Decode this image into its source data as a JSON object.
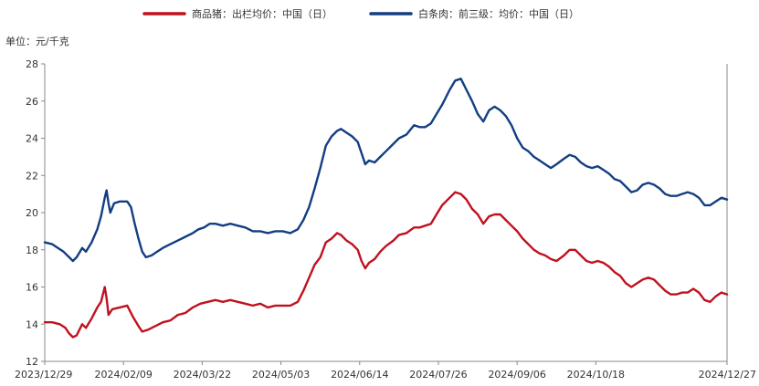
{
  "chart_data": {
    "type": "line",
    "unit_label": "单位：元/千克",
    "legend_placement": "top-center",
    "grid": false,
    "ylim": [
      12,
      28
    ],
    "y_ticks": [
      "12",
      "14",
      "16",
      "18",
      "20",
      "22",
      "24",
      "26",
      "28"
    ],
    "x_range": [
      "2023-12-29",
      "2024-12-27"
    ],
    "x_ticks": [
      "2023/12/29",
      "2024/02/09",
      "2024/03/22",
      "2024/05/03",
      "2024/06/14",
      "2024/07/26",
      "2024/09/06",
      "2024/10/18",
      "2024/12/27"
    ],
    "series": [
      {
        "name": "商品猪：出栏均价：中国（日）",
        "color": "#c0111f",
        "points": [
          [
            "2023-12-29",
            14.1
          ],
          [
            "2024-01-02",
            14.1
          ],
          [
            "2024-01-06",
            14.0
          ],
          [
            "2024-01-09",
            13.8
          ],
          [
            "2024-01-11",
            13.5
          ],
          [
            "2024-01-13",
            13.3
          ],
          [
            "2024-01-15",
            13.4
          ],
          [
            "2024-01-18",
            14.0
          ],
          [
            "2024-01-20",
            13.8
          ],
          [
            "2024-01-23",
            14.3
          ],
          [
            "2024-01-26",
            14.9
          ],
          [
            "2024-01-28",
            15.2
          ],
          [
            "2024-01-30",
            16.0
          ],
          [
            "2024-01-31",
            15.4
          ],
          [
            "2024-02-01",
            14.5
          ],
          [
            "2024-02-03",
            14.8
          ],
          [
            "2024-02-07",
            14.9
          ],
          [
            "2024-02-11",
            15.0
          ],
          [
            "2024-02-14",
            14.4
          ],
          [
            "2024-02-17",
            13.9
          ],
          [
            "2024-02-19",
            13.6
          ],
          [
            "2024-02-22",
            13.7
          ],
          [
            "2024-02-26",
            13.9
          ],
          [
            "2024-03-01",
            14.1
          ],
          [
            "2024-03-05",
            14.2
          ],
          [
            "2024-03-09",
            14.5
          ],
          [
            "2024-03-13",
            14.6
          ],
          [
            "2024-03-17",
            14.9
          ],
          [
            "2024-03-21",
            15.1
          ],
          [
            "2024-03-25",
            15.2
          ],
          [
            "2024-03-29",
            15.3
          ],
          [
            "2024-04-02",
            15.2
          ],
          [
            "2024-04-06",
            15.3
          ],
          [
            "2024-04-10",
            15.2
          ],
          [
            "2024-04-14",
            15.1
          ],
          [
            "2024-04-18",
            15.0
          ],
          [
            "2024-04-22",
            15.1
          ],
          [
            "2024-04-26",
            14.9
          ],
          [
            "2024-04-30",
            15.0
          ],
          [
            "2024-05-04",
            15.0
          ],
          [
            "2024-05-08",
            15.0
          ],
          [
            "2024-05-12",
            15.2
          ],
          [
            "2024-05-15",
            15.8
          ],
          [
            "2024-05-18",
            16.5
          ],
          [
            "2024-05-21",
            17.2
          ],
          [
            "2024-05-24",
            17.6
          ],
          [
            "2024-05-27",
            18.4
          ],
          [
            "2024-05-30",
            18.6
          ],
          [
            "2024-06-02",
            18.9
          ],
          [
            "2024-06-04",
            18.8
          ],
          [
            "2024-06-07",
            18.5
          ],
          [
            "2024-06-10",
            18.3
          ],
          [
            "2024-06-13",
            18.0
          ],
          [
            "2024-06-15",
            17.4
          ],
          [
            "2024-06-17",
            17.0
          ],
          [
            "2024-06-19",
            17.3
          ],
          [
            "2024-06-22",
            17.5
          ],
          [
            "2024-06-25",
            17.9
          ],
          [
            "2024-06-28",
            18.2
          ],
          [
            "2024-07-02",
            18.5
          ],
          [
            "2024-07-05",
            18.8
          ],
          [
            "2024-07-09",
            18.9
          ],
          [
            "2024-07-13",
            19.2
          ],
          [
            "2024-07-16",
            19.2
          ],
          [
            "2024-07-19",
            19.3
          ],
          [
            "2024-07-22",
            19.4
          ],
          [
            "2024-07-25",
            19.9
          ],
          [
            "2024-07-28",
            20.4
          ],
          [
            "2024-08-01",
            20.8
          ],
          [
            "2024-08-04",
            21.1
          ],
          [
            "2024-08-07",
            21.0
          ],
          [
            "2024-08-10",
            20.7
          ],
          [
            "2024-08-13",
            20.2
          ],
          [
            "2024-08-16",
            19.9
          ],
          [
            "2024-08-19",
            19.4
          ],
          [
            "2024-08-22",
            19.8
          ],
          [
            "2024-08-25",
            19.9
          ],
          [
            "2024-08-28",
            19.9
          ],
          [
            "2024-08-31",
            19.6
          ],
          [
            "2024-09-03",
            19.3
          ],
          [
            "2024-09-06",
            19.0
          ],
          [
            "2024-09-09",
            18.6
          ],
          [
            "2024-09-12",
            18.3
          ],
          [
            "2024-09-15",
            18.0
          ],
          [
            "2024-09-18",
            17.8
          ],
          [
            "2024-09-21",
            17.7
          ],
          [
            "2024-09-24",
            17.5
          ],
          [
            "2024-09-27",
            17.4
          ],
          [
            "2024-10-01",
            17.7
          ],
          [
            "2024-10-04",
            18.0
          ],
          [
            "2024-10-07",
            18.0
          ],
          [
            "2024-10-10",
            17.7
          ],
          [
            "2024-10-13",
            17.4
          ],
          [
            "2024-10-16",
            17.3
          ],
          [
            "2024-10-19",
            17.4
          ],
          [
            "2024-10-22",
            17.3
          ],
          [
            "2024-10-25",
            17.1
          ],
          [
            "2024-10-28",
            16.8
          ],
          [
            "2024-10-31",
            16.6
          ],
          [
            "2024-11-03",
            16.2
          ],
          [
            "2024-11-06",
            16.0
          ],
          [
            "2024-11-09",
            16.2
          ],
          [
            "2024-11-12",
            16.4
          ],
          [
            "2024-11-15",
            16.5
          ],
          [
            "2024-11-18",
            16.4
          ],
          [
            "2024-11-21",
            16.1
          ],
          [
            "2024-11-24",
            15.8
          ],
          [
            "2024-11-27",
            15.6
          ],
          [
            "2024-11-30",
            15.6
          ],
          [
            "2024-12-03",
            15.7
          ],
          [
            "2024-12-06",
            15.7
          ],
          [
            "2024-12-09",
            15.9
          ],
          [
            "2024-12-12",
            15.7
          ],
          [
            "2024-12-15",
            15.3
          ],
          [
            "2024-12-18",
            15.2
          ],
          [
            "2024-12-21",
            15.5
          ],
          [
            "2024-12-24",
            15.7
          ],
          [
            "2024-12-27",
            15.6
          ]
        ]
      },
      {
        "name": "白条肉：前三级：均价：中国（日）",
        "color": "#133e82",
        "points": [
          [
            "2023-12-29",
            18.4
          ],
          [
            "2024-01-02",
            18.3
          ],
          [
            "2024-01-05",
            18.1
          ],
          [
            "2024-01-08",
            17.9
          ],
          [
            "2024-01-11",
            17.6
          ],
          [
            "2024-01-13",
            17.4
          ],
          [
            "2024-01-15",
            17.6
          ],
          [
            "2024-01-18",
            18.1
          ],
          [
            "2024-01-20",
            17.9
          ],
          [
            "2024-01-23",
            18.4
          ],
          [
            "2024-01-26",
            19.1
          ],
          [
            "2024-01-28",
            19.8
          ],
          [
            "2024-01-30",
            20.8
          ],
          [
            "2024-01-31",
            21.2
          ],
          [
            "2024-02-01",
            20.5
          ],
          [
            "2024-02-02",
            20.0
          ],
          [
            "2024-02-04",
            20.5
          ],
          [
            "2024-02-07",
            20.6
          ],
          [
            "2024-02-11",
            20.6
          ],
          [
            "2024-02-13",
            20.3
          ],
          [
            "2024-02-15",
            19.4
          ],
          [
            "2024-02-17",
            18.6
          ],
          [
            "2024-02-19",
            17.9
          ],
          [
            "2024-02-21",
            17.6
          ],
          [
            "2024-02-24",
            17.7
          ],
          [
            "2024-02-27",
            17.9
          ],
          [
            "2024-03-01",
            18.1
          ],
          [
            "2024-03-05",
            18.3
          ],
          [
            "2024-03-09",
            18.5
          ],
          [
            "2024-03-13",
            18.7
          ],
          [
            "2024-03-17",
            18.9
          ],
          [
            "2024-03-20",
            19.1
          ],
          [
            "2024-03-23",
            19.2
          ],
          [
            "2024-03-26",
            19.4
          ],
          [
            "2024-03-29",
            19.4
          ],
          [
            "2024-04-02",
            19.3
          ],
          [
            "2024-04-06",
            19.4
          ],
          [
            "2024-04-10",
            19.3
          ],
          [
            "2024-04-14",
            19.2
          ],
          [
            "2024-04-18",
            19.0
          ],
          [
            "2024-04-22",
            19.0
          ],
          [
            "2024-04-26",
            18.9
          ],
          [
            "2024-04-30",
            19.0
          ],
          [
            "2024-05-04",
            19.0
          ],
          [
            "2024-05-08",
            18.9
          ],
          [
            "2024-05-12",
            19.1
          ],
          [
            "2024-05-15",
            19.6
          ],
          [
            "2024-05-18",
            20.3
          ],
          [
            "2024-05-21",
            21.3
          ],
          [
            "2024-05-24",
            22.4
          ],
          [
            "2024-05-27",
            23.6
          ],
          [
            "2024-05-30",
            24.1
          ],
          [
            "2024-06-02",
            24.4
          ],
          [
            "2024-06-04",
            24.5
          ],
          [
            "2024-06-07",
            24.3
          ],
          [
            "2024-06-10",
            24.1
          ],
          [
            "2024-06-13",
            23.8
          ],
          [
            "2024-06-15",
            23.2
          ],
          [
            "2024-06-17",
            22.6
          ],
          [
            "2024-06-19",
            22.8
          ],
          [
            "2024-06-22",
            22.7
          ],
          [
            "2024-06-25",
            23.0
          ],
          [
            "2024-06-28",
            23.3
          ],
          [
            "2024-07-02",
            23.7
          ],
          [
            "2024-07-05",
            24.0
          ],
          [
            "2024-07-09",
            24.2
          ],
          [
            "2024-07-13",
            24.7
          ],
          [
            "2024-07-16",
            24.6
          ],
          [
            "2024-07-19",
            24.6
          ],
          [
            "2024-07-22",
            24.8
          ],
          [
            "2024-07-25",
            25.3
          ],
          [
            "2024-07-28",
            25.8
          ],
          [
            "2024-08-01",
            26.6
          ],
          [
            "2024-08-04",
            27.1
          ],
          [
            "2024-08-07",
            27.2
          ],
          [
            "2024-08-10",
            26.6
          ],
          [
            "2024-08-13",
            26.0
          ],
          [
            "2024-08-16",
            25.3
          ],
          [
            "2024-08-19",
            24.9
          ],
          [
            "2024-08-22",
            25.5
          ],
          [
            "2024-08-25",
            25.7
          ],
          [
            "2024-08-28",
            25.5
          ],
          [
            "2024-08-31",
            25.2
          ],
          [
            "2024-09-03",
            24.7
          ],
          [
            "2024-09-06",
            24.0
          ],
          [
            "2024-09-09",
            23.5
          ],
          [
            "2024-09-12",
            23.3
          ],
          [
            "2024-09-15",
            23.0
          ],
          [
            "2024-09-18",
            22.8
          ],
          [
            "2024-09-21",
            22.6
          ],
          [
            "2024-09-24",
            22.4
          ],
          [
            "2024-09-27",
            22.6
          ],
          [
            "2024-10-01",
            22.9
          ],
          [
            "2024-10-04",
            23.1
          ],
          [
            "2024-10-07",
            23.0
          ],
          [
            "2024-10-10",
            22.7
          ],
          [
            "2024-10-13",
            22.5
          ],
          [
            "2024-10-16",
            22.4
          ],
          [
            "2024-10-19",
            22.5
          ],
          [
            "2024-10-22",
            22.3
          ],
          [
            "2024-10-25",
            22.1
          ],
          [
            "2024-10-28",
            21.8
          ],
          [
            "2024-10-31",
            21.7
          ],
          [
            "2024-11-03",
            21.4
          ],
          [
            "2024-11-06",
            21.1
          ],
          [
            "2024-11-09",
            21.2
          ],
          [
            "2024-11-12",
            21.5
          ],
          [
            "2024-11-15",
            21.6
          ],
          [
            "2024-11-18",
            21.5
          ],
          [
            "2024-11-21",
            21.3
          ],
          [
            "2024-11-24",
            21.0
          ],
          [
            "2024-11-27",
            20.9
          ],
          [
            "2024-11-30",
            20.9
          ],
          [
            "2024-12-03",
            21.0
          ],
          [
            "2024-12-06",
            21.1
          ],
          [
            "2024-12-09",
            21.0
          ],
          [
            "2024-12-12",
            20.8
          ],
          [
            "2024-12-15",
            20.4
          ],
          [
            "2024-12-18",
            20.4
          ],
          [
            "2024-12-21",
            20.6
          ],
          [
            "2024-12-24",
            20.8
          ],
          [
            "2024-12-27",
            20.7
          ]
        ]
      }
    ]
  }
}
